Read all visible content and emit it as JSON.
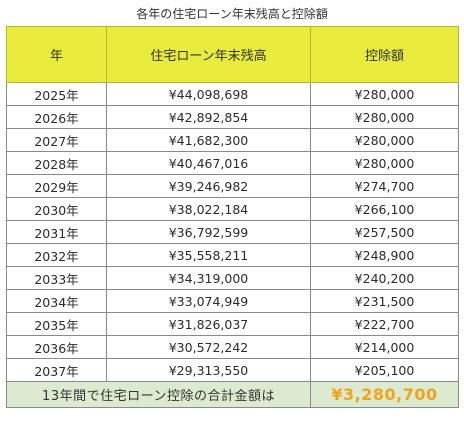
{
  "caption": "各年の住宅ローン年末残高と控除額",
  "table": {
    "headers": [
      "年",
      "住宅ローン年末残高",
      "控除額"
    ],
    "rows": [
      [
        "2025年",
        "¥44,098,698",
        "¥280,000"
      ],
      [
        "2026年",
        "¥42,892,854",
        "¥280,000"
      ],
      [
        "2027年",
        "¥41,682,300",
        "¥280,000"
      ],
      [
        "2028年",
        "¥40,467,016",
        "¥280,000"
      ],
      [
        "2029年",
        "¥39,246,982",
        "¥274,700"
      ],
      [
        "2030年",
        "¥38,022,184",
        "¥266,100"
      ],
      [
        "2031年",
        "¥36,792,599",
        "¥257,500"
      ],
      [
        "2032年",
        "¥35,558,211",
        "¥248,900"
      ],
      [
        "2033年",
        "¥34,319,000",
        "¥240,200"
      ],
      [
        "2034年",
        "¥33,074,949",
        "¥231,500"
      ],
      [
        "2035年",
        "¥31,826,037",
        "¥222,700"
      ],
      [
        "2036年",
        "¥30,572,242",
        "¥214,000"
      ],
      [
        "2037年",
        "¥29,313,550",
        "¥205,100"
      ]
    ],
    "total": {
      "label": "13年間で住宅ローン控除の合計金額は",
      "value": "¥3,280,700"
    }
  },
  "colors": {
    "header_bg": "#eaec3d",
    "total_bg": "#dcebcf",
    "total_value": "#f0a31c"
  }
}
